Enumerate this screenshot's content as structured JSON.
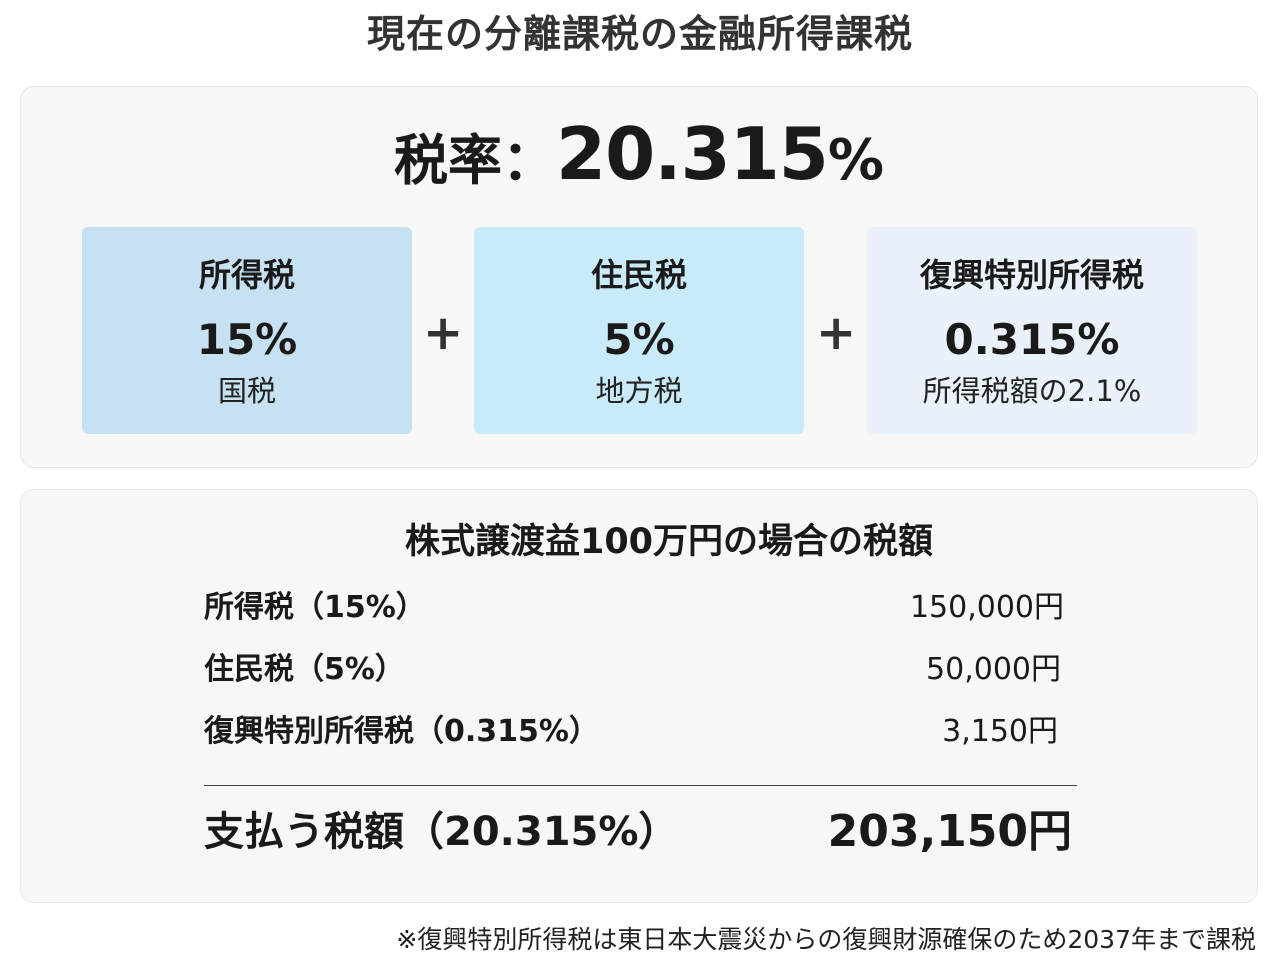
{
  "page": {
    "title": "現在の分離課税の金融所得課税"
  },
  "rate_panel": {
    "label": "税率：",
    "value": "20.315",
    "unit": "%",
    "cards": [
      {
        "name": "所得税",
        "rate": "15%",
        "note": "国税"
      },
      {
        "name": "住民税",
        "rate": "5%",
        "note": "地方税"
      },
      {
        "name": "復興特別所得税",
        "rate": "0.315%",
        "note": "所得税額の2.1%"
      }
    ],
    "operator": "+"
  },
  "example_panel": {
    "title": "株式譲渡益100万円の場合の税額",
    "items": [
      {
        "label": "所得税（15%）",
        "amount": "150,000円"
      },
      {
        "label": "住民税（5%）",
        "amount": "50,000円"
      },
      {
        "label": "復興特別所得税（0.315%）",
        "amount": "3,150円"
      }
    ],
    "total": {
      "label": "支払う税額（20.315%）",
      "amount": "203,150円"
    }
  },
  "footnote": "※復興特別所得税は東日本大震災からの復興財源確保のため2037年まで課税",
  "colors": {
    "card_income": "#c6e2f2",
    "card_resident": "#c9eaf8",
    "card_recovery": "#e9f2fa",
    "panel_background": "#f7f7f7"
  }
}
